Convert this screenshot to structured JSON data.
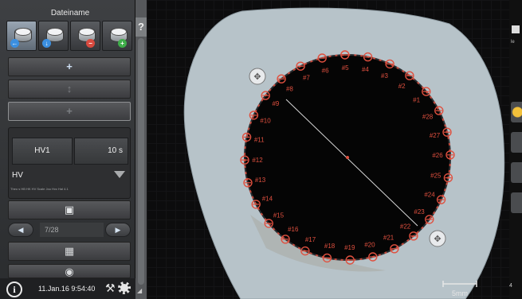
{
  "panel": {
    "title": "Dateiname",
    "file_buttons": [
      {
        "icon": "disk-back-icon",
        "badge": "←",
        "badge_color": "#3b8fe0"
      },
      {
        "icon": "disk-save-icon",
        "badge": "↓",
        "badge_color": "#3b8fe0"
      },
      {
        "icon": "disk-delete-icon",
        "badge": "−",
        "badge_color": "#d84a3f"
      },
      {
        "icon": "disk-add-icon",
        "badge": "+",
        "badge_color": "#3fae4a"
      }
    ],
    "hv_method": "HV1",
    "dwell_time": "10 s",
    "scale": "HV",
    "fine_print": "Theo s  HB HK HV  Scale  Jou  Hvc  Hal  4.1",
    "image_count": "7/28",
    "date_time": "11.Jan.16  9:54:40"
  },
  "image": {
    "markers": [
      "#1",
      "#2",
      "#3",
      "#4",
      "#5",
      "#6",
      "#7",
      "#8",
      "#9",
      "#10",
      "#11",
      "#12",
      "#13",
      "#14",
      "#15",
      "#16",
      "#17",
      "#18",
      "#19",
      "#20",
      "#21",
      "#22",
      "#23",
      "#24",
      "#25",
      "#26",
      "#27",
      "#28"
    ],
    "scale_label": "5mm",
    "marker_color": "#e0503f",
    "background_color": "#b7c3c9"
  },
  "right_toolbar": {
    "small_text": "le",
    "bottom_label": "4"
  }
}
